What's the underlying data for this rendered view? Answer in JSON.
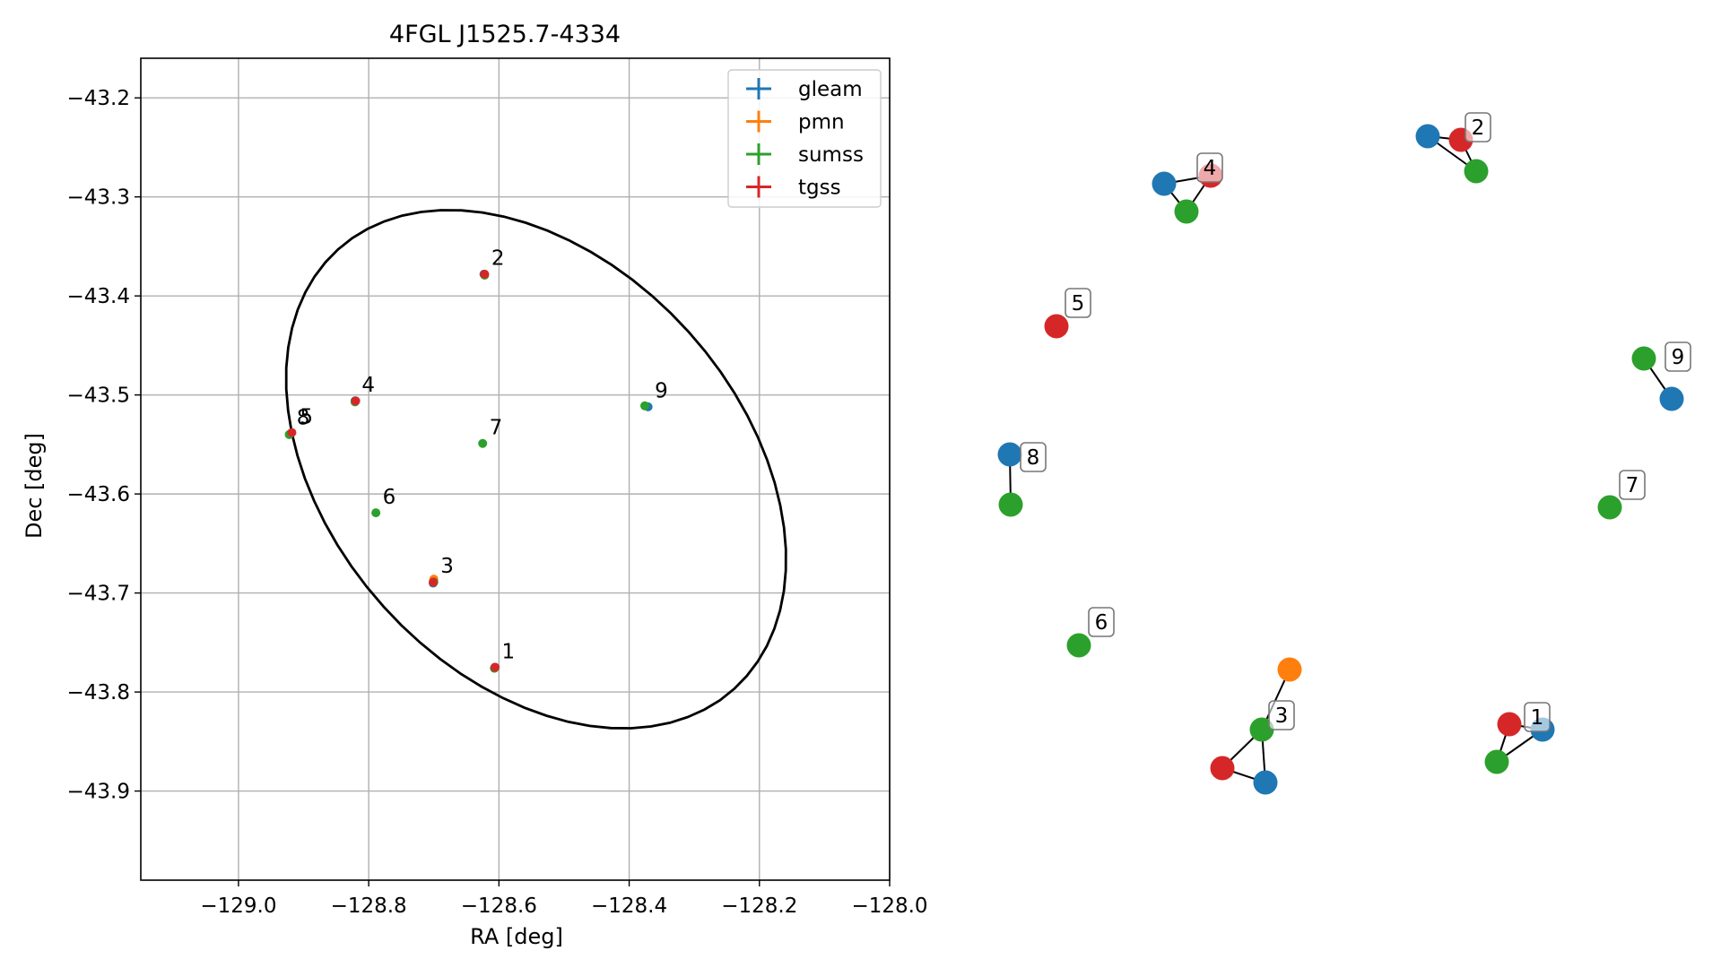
{
  "chart_data": [
    {
      "type": "scatter",
      "title": "4FGL J1525.7-4334",
      "xlabel": "RA [deg]",
      "ylabel": "Dec [deg]",
      "xlim": [
        -129.15,
        -128.0
      ],
      "ylim": [
        -43.99,
        -43.16
      ],
      "xticks": [
        -129.0,
        -128.8,
        -128.6,
        -128.4,
        -128.2,
        -128.0
      ],
      "xtick_labels": [
        "−129.0",
        "−128.8",
        "−128.6",
        "−128.4",
        "−128.2",
        "−128.0"
      ],
      "yticks": [
        -43.2,
        -43.3,
        -43.4,
        -43.5,
        -43.6,
        -43.7,
        -43.8,
        -43.9
      ],
      "ytick_labels": [
        "−43.2",
        "−43.3",
        "−43.4",
        "−43.5",
        "−43.6",
        "−43.7",
        "−43.8",
        "−43.9"
      ],
      "grid": true,
      "legend_position": "top-right",
      "series": [
        {
          "name": "gleam",
          "color": "#1f77b4",
          "points": [
            {
              "x": -128.606,
              "y": -43.775
            },
            {
              "x": -128.623,
              "y": -43.378
            },
            {
              "x": -128.701,
              "y": -43.69
            },
            {
              "x": -128.821,
              "y": -43.506
            },
            {
              "x": -128.92,
              "y": -43.539
            },
            {
              "x": -128.371,
              "y": -43.512
            }
          ]
        },
        {
          "name": "pmn",
          "color": "#ff7f0e",
          "points": [
            {
              "x": -128.7,
              "y": -43.686
            }
          ]
        },
        {
          "name": "sumss",
          "color": "#2ca02c",
          "points": [
            {
              "x": -128.607,
              "y": -43.776
            },
            {
              "x": -128.622,
              "y": -43.379
            },
            {
              "x": -128.7,
              "y": -43.689
            },
            {
              "x": -128.821,
              "y": -43.507
            },
            {
              "x": -128.922,
              "y": -43.54
            },
            {
              "x": -128.789,
              "y": -43.619
            },
            {
              "x": -128.625,
              "y": -43.549
            },
            {
              "x": -128.376,
              "y": -43.511
            }
          ]
        },
        {
          "name": "tgss",
          "color": "#d62728",
          "points": [
            {
              "x": -128.606,
              "y": -43.775
            },
            {
              "x": -128.622,
              "y": -43.378
            },
            {
              "x": -128.701,
              "y": -43.689
            },
            {
              "x": -128.82,
              "y": -43.506
            },
            {
              "x": -128.918,
              "y": -43.538
            }
          ]
        }
      ],
      "annotations": [
        {
          "text": "1",
          "x": -128.604,
          "y": -43.773
        },
        {
          "text": "2",
          "x": -128.62,
          "y": -43.376
        },
        {
          "text": "3",
          "x": -128.698,
          "y": -43.687
        },
        {
          "text": "4",
          "x": -128.819,
          "y": -43.504
        },
        {
          "text": "5",
          "x": -128.914,
          "y": -43.536
        },
        {
          "text": "6",
          "x": -128.787,
          "y": -43.617
        },
        {
          "text": "7",
          "x": -128.623,
          "y": -43.547
        },
        {
          "text": "8",
          "x": -128.919,
          "y": -43.537
        },
        {
          "text": "9",
          "x": -128.369,
          "y": -43.51
        }
      ],
      "ellipse": {
        "center_ra": -128.543,
        "center_dec": -43.575,
        "stroke": "#000000"
      }
    },
    {
      "type": "network",
      "node_colors": {
        "gleam": "#1f77b4",
        "pmn": "#ff7f0e",
        "sumss": "#2ca02c",
        "tgss": "#d62728"
      },
      "groups": [
        {
          "label": "1",
          "nodes": [
            "tgss",
            "gleam",
            "sumss"
          ]
        },
        {
          "label": "2",
          "nodes": [
            "gleam",
            "tgss",
            "sumss"
          ]
        },
        {
          "label": "3",
          "nodes": [
            "sumss",
            "pmn",
            "tgss",
            "gleam"
          ]
        },
        {
          "label": "4",
          "nodes": [
            "gleam",
            "tgss",
            "sumss"
          ]
        },
        {
          "label": "5",
          "nodes": [
            "tgss"
          ]
        },
        {
          "label": "6",
          "nodes": [
            "sumss"
          ]
        },
        {
          "label": "7",
          "nodes": [
            "sumss"
          ]
        },
        {
          "label": "8",
          "nodes": [
            "gleam",
            "sumss"
          ]
        },
        {
          "label": "9",
          "nodes": [
            "sumss",
            "gleam"
          ]
        }
      ]
    }
  ]
}
